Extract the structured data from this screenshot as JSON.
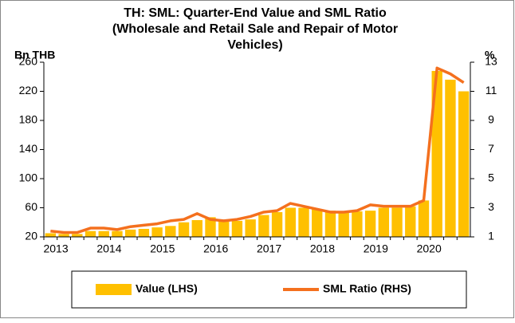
{
  "chart_data": {
    "type": "bar_line",
    "title": [
      "TH: SML: Quarter-End Value and SML Ratio",
      "(Wholesale and Retail Sale and Repair of Motor",
      "Vehicles)"
    ],
    "y_label": "Bn THB",
    "y2_label": "%",
    "categories": [
      "2013",
      null,
      null,
      null,
      "2014",
      null,
      null,
      null,
      "2015",
      null,
      null,
      null,
      "2016",
      null,
      null,
      null,
      "2017",
      null,
      null,
      null,
      "2018",
      null,
      null,
      null,
      "2019",
      null,
      null,
      null,
      "2020",
      null,
      null,
      null
    ],
    "series": [
      {
        "name": "Value (LHS)",
        "color": "#ffc000",
        "type": "bar",
        "values": [
          25,
          24,
          24,
          28,
          28,
          28,
          30,
          31,
          33,
          35,
          40,
          43,
          47,
          42,
          42,
          44,
          50,
          54,
          60,
          60,
          58,
          56,
          54,
          55,
          56,
          60,
          60,
          62,
          70,
          248,
          236,
          220
        ]
      },
      {
        "name": "SML Ratio (RHS)",
        "color": "#f4701e",
        "type": "line",
        "axis": "y2",
        "values": [
          1.4,
          1.3,
          1.3,
          1.6,
          1.6,
          1.5,
          1.7,
          1.8,
          1.9,
          2.1,
          2.2,
          2.6,
          2.2,
          2.1,
          2.2,
          2.4,
          2.7,
          2.8,
          3.3,
          3.1,
          2.9,
          2.7,
          2.7,
          2.8,
          3.2,
          3.1,
          3.1,
          3.1,
          3.5,
          12.6,
          12.2,
          11.6
        ]
      }
    ],
    "ylim": [
      20,
      260
    ],
    "yticks": [
      20,
      60,
      100,
      140,
      180,
      220,
      260
    ],
    "y2lim": [
      1,
      13
    ],
    "y2ticks": [
      1,
      3,
      5,
      7,
      9,
      11,
      13
    ]
  }
}
